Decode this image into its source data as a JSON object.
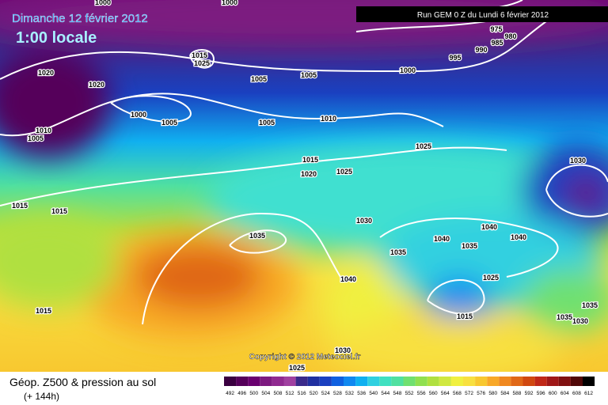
{
  "header": {
    "title": "Dimanche 12 février 2012",
    "subtitle": "1:00 locale",
    "run": "Run GEM 0 Z du Lundi 6 février 2012",
    "copyright": "Copyright © 2012 Meteociel.fr"
  },
  "footer": {
    "title": "Géop. Z500 & pression au sol",
    "subtitle": "(+ 144h)"
  },
  "legend": {
    "values": [
      492,
      496,
      500,
      504,
      508,
      512,
      516,
      520,
      524,
      528,
      532,
      536,
      540,
      544,
      548,
      552,
      556,
      560,
      564,
      568,
      572,
      576,
      580,
      584,
      588,
      592,
      596,
      600,
      604,
      608,
      612
    ],
    "colors": [
      "#3a0040",
      "#55005a",
      "#6a0070",
      "#7d1a80",
      "#902a90",
      "#a040a0",
      "#3a2a8a",
      "#2030a0",
      "#1a40c0",
      "#1060e0",
      "#1088f0",
      "#10b0f0",
      "#30d0e0",
      "#40e0c0",
      "#50e0a0",
      "#70e070",
      "#90e050",
      "#b0e040",
      "#d0e840",
      "#f0f040",
      "#f8e040",
      "#f8c830",
      "#f8a828",
      "#f08820",
      "#e06818",
      "#d04810",
      "#c02818",
      "#a01818",
      "#801010",
      "#500808",
      "#000000"
    ]
  },
  "isobars": {
    "labels": [
      1000,
      1000,
      1000,
      1000,
      995,
      990,
      985,
      980,
      975,
      1020,
      1020,
      1015,
      1025,
      1005,
      1005,
      1005,
      1005,
      1010,
      1010,
      1005,
      1015,
      1020,
      1025,
      1025,
      1030,
      1015,
      1015,
      1035,
      1030,
      1040,
      1040,
      1040,
      1035,
      1035,
      1040,
      1025,
      1015,
      1035,
      1035,
      1030,
      1015,
      1030,
      1025
    ]
  }
}
